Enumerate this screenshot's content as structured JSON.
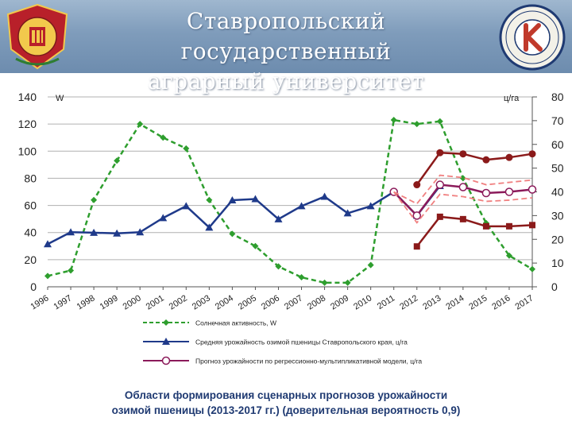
{
  "header": {
    "title_line1": "Ставропольский государственный",
    "title_line2": "аграрный университет"
  },
  "caption": {
    "line1": "Области формирования сценарных прогнозов урожайности",
    "line2": "озимой пшеницы (2013-2017 гг.) (доверительная вероятность 0,9)"
  },
  "chart_data": {
    "type": "line",
    "x": [
      "1996",
      "1997",
      "1998",
      "1999",
      "2000",
      "2001",
      "2002",
      "2003",
      "2004",
      "2005",
      "2006",
      "2007",
      "2008",
      "2009",
      "2010",
      "2011",
      "2012",
      "2013",
      "2014",
      "2015",
      "2016",
      "2017"
    ],
    "y_left_label": "W",
    "y_right_label": "ц/га",
    "y_left_ticks": [
      0,
      20,
      40,
      60,
      80,
      100,
      120,
      140
    ],
    "y_right_ticks": [
      0,
      10,
      20,
      30,
      40,
      50,
      60,
      70,
      80
    ],
    "ylim_left": [
      0,
      140
    ],
    "ylim_right": [
      0,
      80
    ],
    "grid": true,
    "legend_position": "bottom",
    "series": [
      {
        "name": "Солнечная активность, W",
        "axis": "left",
        "style": "dashed",
        "marker": "diamond",
        "color": "#2e9e2e",
        "x": [
          "1996",
          "1997",
          "1998",
          "1999",
          "2000",
          "2001",
          "2002",
          "2003",
          "2004",
          "2005",
          "2006",
          "2007",
          "2008",
          "2009",
          "2010",
          "2011",
          "2012",
          "2013",
          "2014",
          "2015",
          "2016",
          "2017"
        ],
        "values": [
          8,
          12,
          64,
          93,
          120,
          110,
          102,
          64,
          39,
          30,
          15,
          7,
          3,
          3,
          16,
          123,
          120,
          122,
          80,
          47,
          23,
          13
        ]
      },
      {
        "name": "Средняя урожайность озимой пшеницы Ставропольского края, ц/га",
        "axis": "right",
        "style": "solid",
        "marker": "triangle",
        "color": "#1f3a8a",
        "x": [
          "1996",
          "1997",
          "1998",
          "1999",
          "2000",
          "2001",
          "2002",
          "2003",
          "2004",
          "2005",
          "2006",
          "2007",
          "2008",
          "2009",
          "2010",
          "2011",
          "2012",
          "2013"
        ],
        "values": [
          18,
          23,
          22.8,
          22.5,
          23,
          29,
          34,
          25,
          36.5,
          37,
          28.5,
          34,
          38,
          31,
          34,
          40,
          30,
          42.5
        ]
      },
      {
        "name": "Прогноз урожайности по регрессионно-мультипликативной модели, ц/га",
        "axis": "right",
        "style": "solid",
        "marker": "circle-open",
        "color": "#8b1a5a",
        "x": [
          "2011",
          "2012",
          "2013",
          "2014",
          "2015",
          "2016",
          "2017"
        ],
        "values": [
          40,
          30,
          43,
          42,
          39.5,
          40,
          41
        ]
      },
      {
        "name": "",
        "axis": "right",
        "style": "solid",
        "marker": "circle",
        "color": "#8b1a1a",
        "x": [
          "2012",
          "2013",
          "2014",
          "2015",
          "2016",
          "2017"
        ],
        "values": [
          43,
          56.5,
          56,
          53.5,
          54.5,
          56
        ]
      },
      {
        "name": "",
        "axis": "right",
        "style": "solid",
        "marker": "square",
        "color": "#8b1a1a",
        "x": [
          "2012",
          "2013",
          "2014",
          "2015",
          "2016",
          "2017"
        ],
        "values": [
          17,
          29.5,
          28.5,
          25.5,
          25.5,
          26
        ]
      },
      {
        "name": "",
        "axis": "right",
        "style": "dashed",
        "marker": "none",
        "color": "#f08080",
        "x": [
          "2011",
          "2012",
          "2013",
          "2014",
          "2015",
          "2016",
          "2017"
        ],
        "values": [
          40,
          35,
          47,
          46,
          43,
          44,
          45
        ]
      },
      {
        "name": "",
        "axis": "right",
        "style": "dashed",
        "marker": "none",
        "color": "#f08080",
        "x": [
          "2011",
          "2012",
          "2013",
          "2014",
          "2015",
          "2016",
          "2017"
        ],
        "values": [
          40,
          27,
          39,
          38,
          36,
          36.5,
          37.5
        ]
      }
    ]
  }
}
